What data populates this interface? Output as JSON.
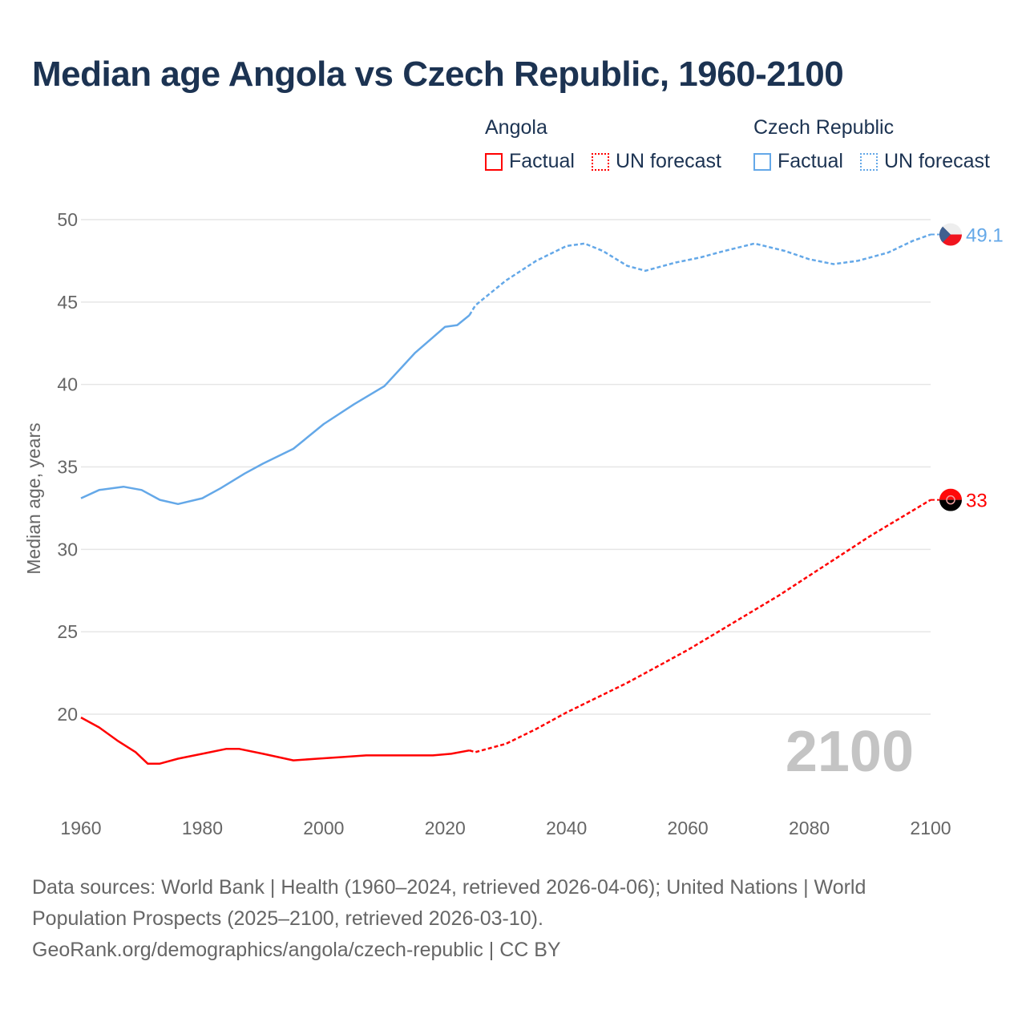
{
  "title": "Median age Angola vs Czech Republic, 1960-2100",
  "legend": {
    "groups": [
      {
        "name": "Angola",
        "color": "#ff0000",
        "factual": "Factual",
        "forecast": "UN forecast"
      },
      {
        "name": "Czech Republic",
        "color": "#64a8e8",
        "factual": "Factual",
        "forecast": "UN forecast"
      }
    ]
  },
  "year_watermark": "2100",
  "footer": {
    "line1": "Data sources: World Bank | Health (1960–2024, retrieved 2026-04-06); United Nations | World",
    "line2": "Population Prospects (2025–2100, retrieved 2026-03-10).",
    "line3": "GeoRank.org/demographics/angola/czech-republic | CC BY"
  },
  "chart_data": {
    "type": "line",
    "title": "Median age Angola vs Czech Republic, 1960-2100",
    "xlabel": "",
    "ylabel": "Median age, years",
    "xlim": [
      1960,
      2100
    ],
    "ylim": [
      15,
      50
    ],
    "x_ticks": [
      "1960",
      "1980",
      "2000",
      "2020",
      "2040",
      "2060",
      "2080",
      "2100"
    ],
    "y_ticks": [
      "20",
      "25",
      "30",
      "35",
      "40",
      "45",
      "50"
    ],
    "grid": true,
    "legend_position": "top-right",
    "series": [
      {
        "name": "Czech Republic",
        "color": "#64a8e8",
        "end_label": "49.1",
        "factual": [
          [
            1960,
            33.1
          ],
          [
            1963,
            33.6
          ],
          [
            1967,
            33.8
          ],
          [
            1970,
            33.6
          ],
          [
            1973,
            33.0
          ],
          [
            1976,
            32.75
          ],
          [
            1980,
            33.1
          ],
          [
            1983,
            33.7
          ],
          [
            1987,
            34.6
          ],
          [
            1990,
            35.2
          ],
          [
            1995,
            36.1
          ],
          [
            2000,
            37.6
          ],
          [
            2005,
            38.8
          ],
          [
            2010,
            39.9
          ],
          [
            2015,
            41.9
          ],
          [
            2020,
            43.5
          ],
          [
            2022,
            43.6
          ],
          [
            2024,
            44.2
          ]
        ],
        "forecast": [
          [
            2024,
            44.2
          ],
          [
            2025,
            44.8
          ],
          [
            2030,
            46.3
          ],
          [
            2035,
            47.5
          ],
          [
            2040,
            48.4
          ],
          [
            2043,
            48.55
          ],
          [
            2046,
            48.1
          ],
          [
            2050,
            47.2
          ],
          [
            2053,
            46.9
          ],
          [
            2058,
            47.4
          ],
          [
            2062,
            47.7
          ],
          [
            2066,
            48.1
          ],
          [
            2071,
            48.55
          ],
          [
            2076,
            48.1
          ],
          [
            2080,
            47.6
          ],
          [
            2084,
            47.3
          ],
          [
            2088,
            47.5
          ],
          [
            2093,
            48.0
          ],
          [
            2097,
            48.7
          ],
          [
            2100,
            49.1
          ]
        ]
      },
      {
        "name": "Angola",
        "color": "#ff0000",
        "end_label": "33",
        "factual": [
          [
            1960,
            19.8
          ],
          [
            1963,
            19.2
          ],
          [
            1966,
            18.4
          ],
          [
            1969,
            17.7
          ],
          [
            1971,
            17.0
          ],
          [
            1973,
            17.0
          ],
          [
            1976,
            17.3
          ],
          [
            1980,
            17.6
          ],
          [
            1984,
            17.9
          ],
          [
            1986,
            17.9
          ],
          [
            1990,
            17.6
          ],
          [
            1995,
            17.2
          ],
          [
            1999,
            17.3
          ],
          [
            2003,
            17.4
          ],
          [
            2007,
            17.5
          ],
          [
            2018,
            17.5
          ],
          [
            2021,
            17.6
          ],
          [
            2024,
            17.8
          ]
        ],
        "forecast": [
          [
            2024,
            17.8
          ],
          [
            2025,
            17.7
          ],
          [
            2030,
            18.2
          ],
          [
            2035,
            19.1
          ],
          [
            2040,
            20.1
          ],
          [
            2045,
            21.0
          ],
          [
            2050,
            21.9
          ],
          [
            2055,
            22.9
          ],
          [
            2060,
            23.9
          ],
          [
            2065,
            25.0
          ],
          [
            2070,
            26.1
          ],
          [
            2075,
            27.2
          ],
          [
            2080,
            28.4
          ],
          [
            2085,
            29.6
          ],
          [
            2090,
            30.8
          ],
          [
            2095,
            31.9
          ],
          [
            2100,
            33.0
          ]
        ]
      }
    ]
  }
}
